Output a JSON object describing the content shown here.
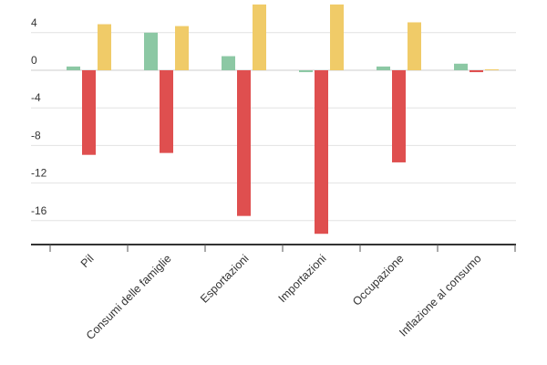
{
  "chart_data": {
    "type": "bar",
    "categories": [
      "Pil",
      "Consumi delle famiglie",
      "Esportazioni",
      "Importazioni",
      "Occupazione",
      "Inflazione al consumo"
    ],
    "series": [
      {
        "values": [
          0.4,
          4.0,
          1.5,
          -0.2,
          0.4,
          0.7
        ],
        "color": "#8cc8a4"
      },
      {
        "values": [
          -9.0,
          -8.8,
          -15.5,
          -17.4,
          -9.8,
          -0.2
        ],
        "color": "#df4f4f"
      },
      {
        "values": [
          4.9,
          4.7,
          7.0,
          7.0,
          5.1,
          0.0
        ],
        "color": "#f0cb68"
      }
    ],
    "yticks": [
      4,
      0,
      -4,
      -8,
      -12,
      -16
    ],
    "ylim": [
      -18.8,
      7.0
    ],
    "grid": true,
    "title": "",
    "xlabel": "",
    "ylabel": ""
  }
}
